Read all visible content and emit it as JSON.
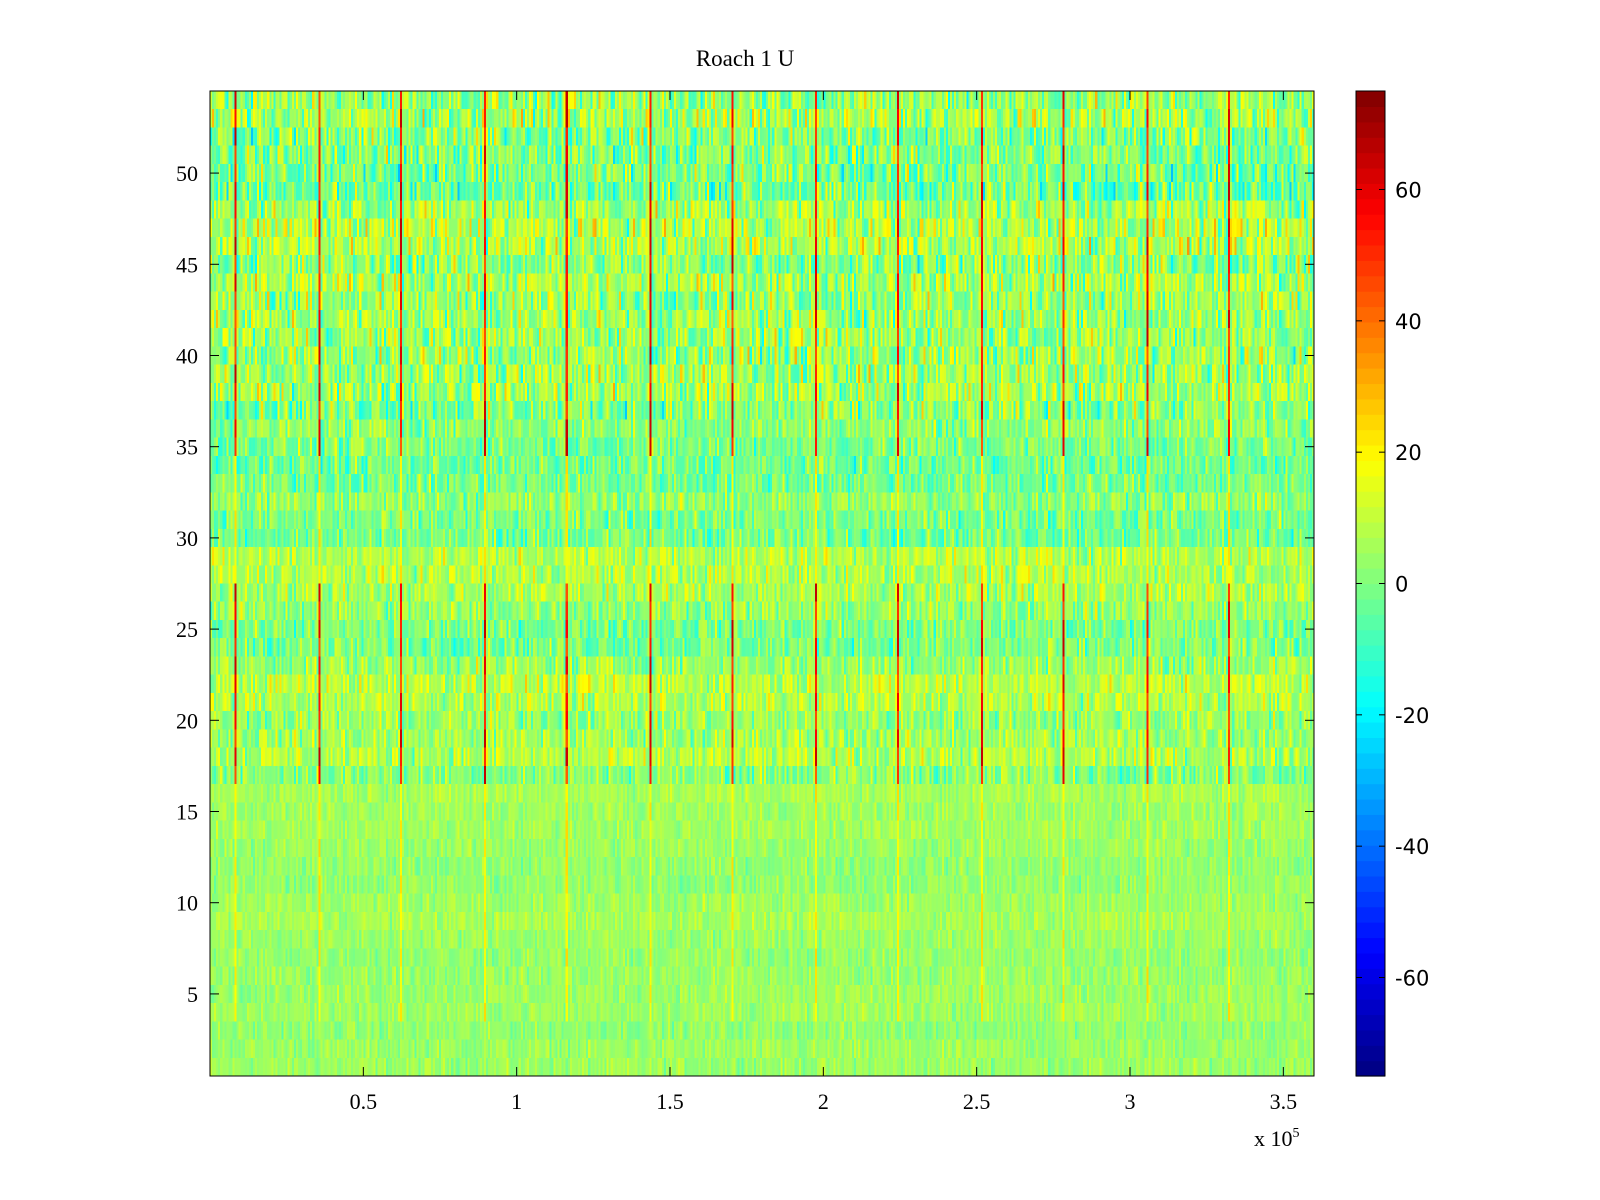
{
  "chart_data": {
    "type": "heatmap",
    "title": "Roach 1 U",
    "xlabel": "",
    "ylabel": "",
    "x_exponent_label": "x 10",
    "x_exponent_power": "5",
    "xlim": [
      0,
      360000
    ],
    "ylim": [
      0.5,
      54.5
    ],
    "rows": 54,
    "x_ticks": [
      0.5,
      1,
      1.5,
      2,
      2.5,
      3,
      3.5
    ],
    "x_tick_labels": [
      "0.5",
      "1",
      "1.5",
      "2",
      "2.5",
      "3",
      "3.5"
    ],
    "y_ticks": [
      5,
      10,
      15,
      20,
      25,
      30,
      35,
      40,
      45,
      50
    ],
    "y_tick_labels": [
      "5",
      "10",
      "15",
      "20",
      "25",
      "30",
      "35",
      "40",
      "45",
      "50"
    ],
    "colorbar": {
      "colormap": "jet",
      "clim": [
        -75,
        75
      ],
      "ticks": [
        -60,
        -40,
        -20,
        0,
        20,
        40,
        60
      ],
      "tick_labels": [
        "-60",
        "-40",
        "-20",
        "0",
        "20",
        "40",
        "60"
      ]
    },
    "row_profile": {
      "description_values_by_row_group": [
        {
          "rows": [
            1,
            16
          ],
          "mean": 4,
          "spread": 5
        },
        {
          "rows": [
            17,
            29
          ],
          "mean": 4,
          "spread": 10
        },
        {
          "rows": [
            30,
            36
          ],
          "mean": 0,
          "spread": 10
        },
        {
          "rows": [
            37,
            54
          ],
          "mean": 2,
          "spread": 14
        }
      ]
    },
    "spike_columns_x": [
      8000,
      35000,
      62000,
      89000,
      116000,
      143000,
      170000,
      197000,
      224000,
      251000,
      278000,
      305000,
      332000
    ],
    "spike_value": 60
  }
}
